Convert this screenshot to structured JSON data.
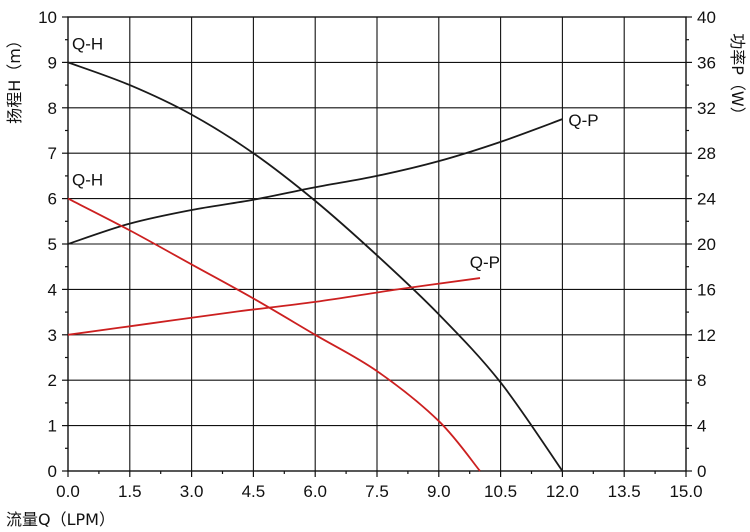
{
  "chart_data": {
    "type": "line",
    "xlabel": "流量Q（LPM）",
    "ylabel_left": "扬程H（m）",
    "ylabel_right": "功率P（W）",
    "xlim": [
      0,
      15
    ],
    "ylim_left": [
      0,
      10
    ],
    "ylim_right": [
      0,
      40
    ],
    "grid": true,
    "x_ticks": [
      "0.0",
      "1.5",
      "3.0",
      "4.5",
      "6.0",
      "7.5",
      "9.0",
      "10.5",
      "12.0",
      "13.5",
      "15.0"
    ],
    "y_left_ticks": [
      "0",
      "1",
      "2",
      "3",
      "4",
      "5",
      "6",
      "7",
      "8",
      "9",
      "10"
    ],
    "y_right_ticks": [
      "0",
      "4",
      "8",
      "12",
      "16",
      "20",
      "24",
      "28",
      "32",
      "36",
      "40"
    ],
    "colors": {
      "black": "#1a1a1a",
      "red": "#cc2020"
    },
    "series": [
      {
        "name": "Q-H",
        "axis": "left",
        "color": "black",
        "x": [
          0,
          1.5,
          3.0,
          4.5,
          6.0,
          7.5,
          9.0,
          10.5,
          12.0
        ],
        "y": [
          9.0,
          8.5,
          7.85,
          7.0,
          5.95,
          4.75,
          3.45,
          1.95,
          0.0
        ]
      },
      {
        "name": "Q-P",
        "axis": "right",
        "color": "black",
        "x": [
          0,
          1.5,
          3.0,
          4.5,
          6.0,
          7.5,
          9.0,
          10.5,
          12.0
        ],
        "y": [
          20.0,
          21.8,
          23.0,
          23.9,
          25.0,
          26.0,
          27.3,
          29.0,
          31.0
        ]
      },
      {
        "name": "Q-H",
        "axis": "left",
        "color": "red",
        "x": [
          0,
          1.5,
          3.0,
          4.5,
          6.0,
          7.5,
          9.0,
          10.0
        ],
        "y": [
          6.0,
          5.3,
          4.55,
          3.8,
          3.0,
          2.2,
          1.1,
          0.0
        ]
      },
      {
        "name": "Q-P",
        "axis": "right",
        "color": "red",
        "x": [
          0,
          2.0,
          4.0,
          6.0,
          8.0,
          10.0
        ],
        "y": [
          12.0,
          13.0,
          14.0,
          14.9,
          16.0,
          17.0
        ]
      }
    ],
    "annotations": [
      {
        "text": "Q-H",
        "series": 0
      },
      {
        "text": "Q-P",
        "series": 1
      },
      {
        "text": "Q-H",
        "series": 2
      },
      {
        "text": "Q-P",
        "series": 3
      }
    ]
  }
}
